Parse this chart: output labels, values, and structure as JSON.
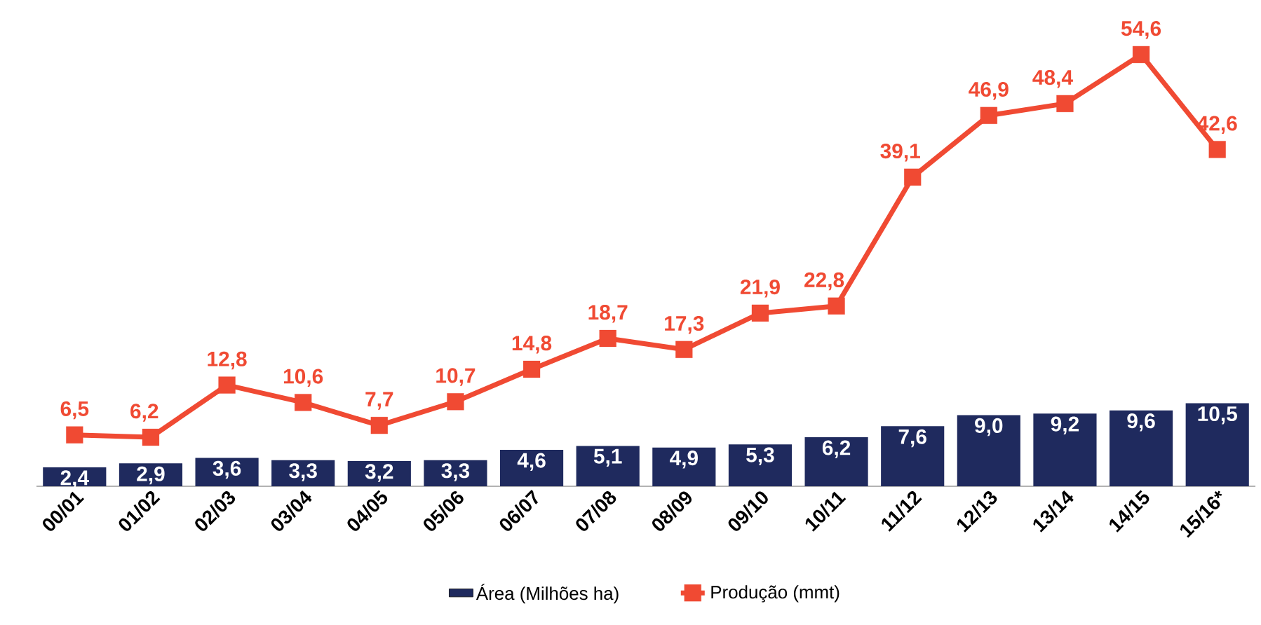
{
  "chart_data": {
    "type": "bar",
    "categories": [
      "00/01",
      "01/02",
      "02/03",
      "03/04",
      "04/05",
      "05/06",
      "06/07",
      "07/08",
      "08/09",
      "09/10",
      "10/11",
      "11/12",
      "12/13",
      "13/14",
      "14/15",
      "15/16*"
    ],
    "series": [
      {
        "name": "Área (Milhões ha)",
        "color": "#1f2a5e",
        "values": [
          2.4,
          2.9,
          3.6,
          3.3,
          3.2,
          3.3,
          4.6,
          5.1,
          4.9,
          5.3,
          6.2,
          7.6,
          9.0,
          9.2,
          9.6,
          10.5
        ],
        "value_labels": [
          "2,4",
          "2,9",
          "3,6",
          "3,3",
          "3,2",
          "3,3",
          "4,6",
          "5,1",
          "4,9",
          "5,3",
          "6,2",
          "7,6",
          "9,0",
          "9,2",
          "9,6",
          "10,5"
        ]
      },
      {
        "name": "Produção (mmt)",
        "type": "line",
        "color": "#f04a33",
        "marker": "square",
        "values": [
          6.5,
          6.2,
          12.8,
          10.6,
          7.7,
          10.7,
          14.8,
          18.7,
          17.3,
          21.9,
          22.8,
          39.1,
          46.9,
          48.4,
          54.6,
          42.6
        ],
        "value_labels": [
          "6,5",
          "6,2",
          "12,8",
          "10,6",
          "7,7",
          "10,7",
          "14,8",
          "18,7",
          "17,3",
          "21,9",
          "22,8",
          "39,1",
          "46,9",
          "48,4",
          "54,6",
          "42,6"
        ]
      }
    ],
    "tick_labels": "x",
    "legend": "bottom"
  }
}
